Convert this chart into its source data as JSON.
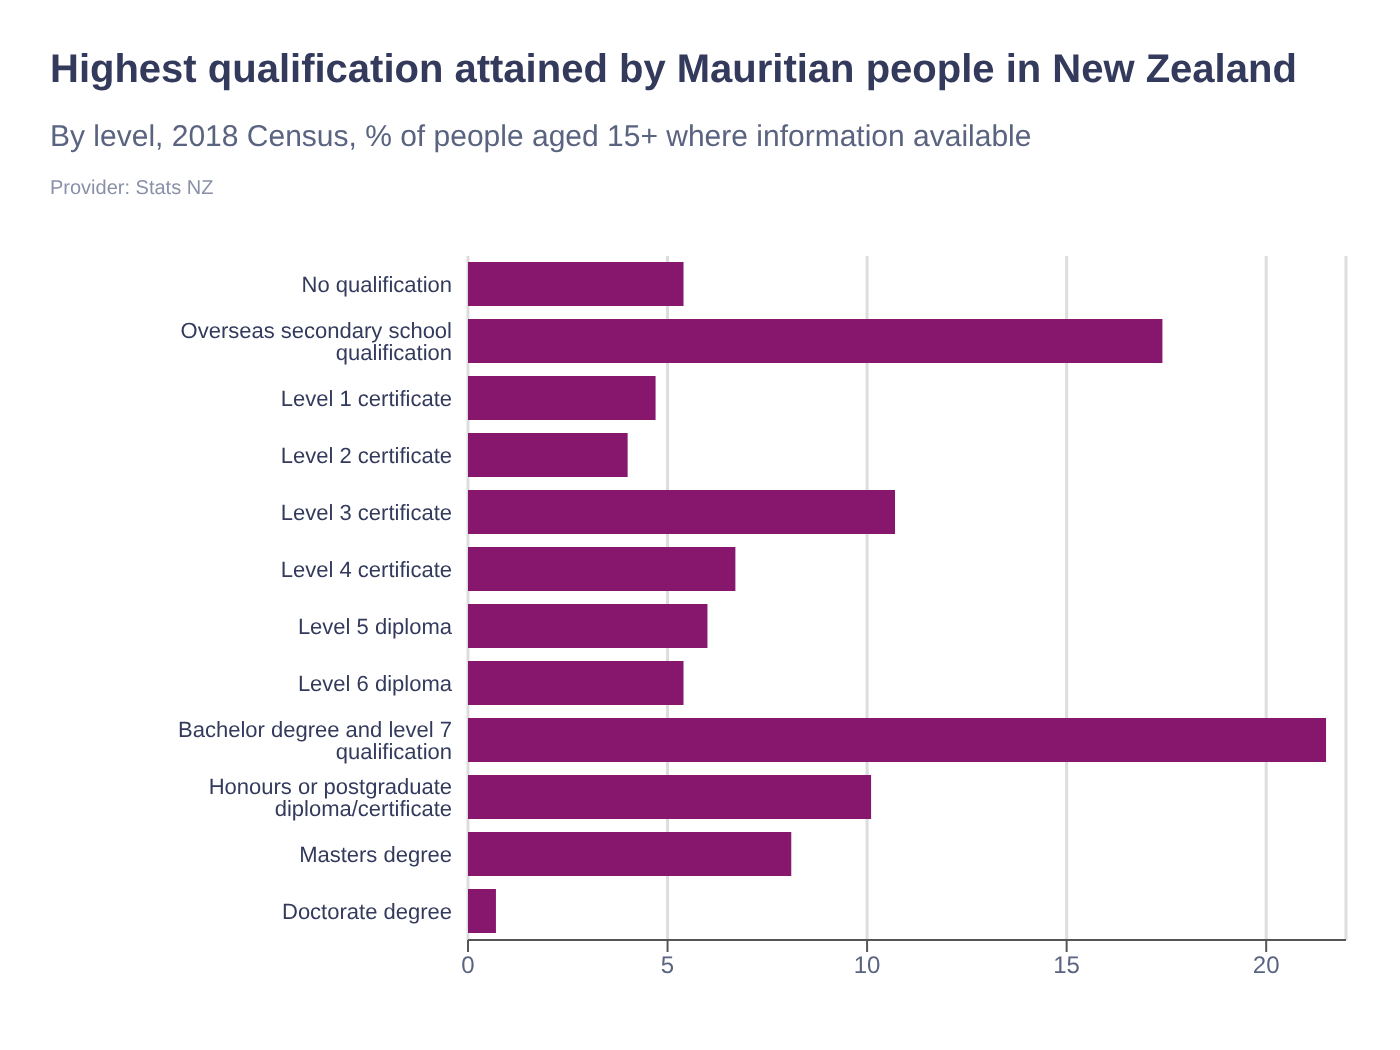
{
  "chart_data": {
    "type": "bar",
    "orientation": "horizontal",
    "title": "Highest qualification attained by Mauritian people in New Zealand",
    "subtitle": "By level, 2018 Census, % of people aged 15+ where information available",
    "annotations": [
      "Provider: Stats NZ"
    ],
    "categories": [
      "No qualification",
      "Overseas secondary school qualification",
      "Level 1 certificate",
      "Level 2 certificate",
      "Level 3 certificate",
      "Level 4 certificate",
      "Level 5 diploma",
      "Level 6 diploma",
      "Bachelor degree and level 7 qualification",
      "Honours or postgraduate diploma/certificate",
      "Masters degree",
      "Doctorate degree"
    ],
    "values": [
      5.4,
      17.4,
      4.7,
      4.0,
      10.7,
      6.7,
      6.0,
      5.4,
      21.5,
      10.1,
      8.1,
      0.7
    ],
    "color": "#86176d",
    "xlim": [
      0,
      22
    ],
    "xticks": [
      0,
      5,
      10,
      15,
      20
    ],
    "grid": "x"
  }
}
